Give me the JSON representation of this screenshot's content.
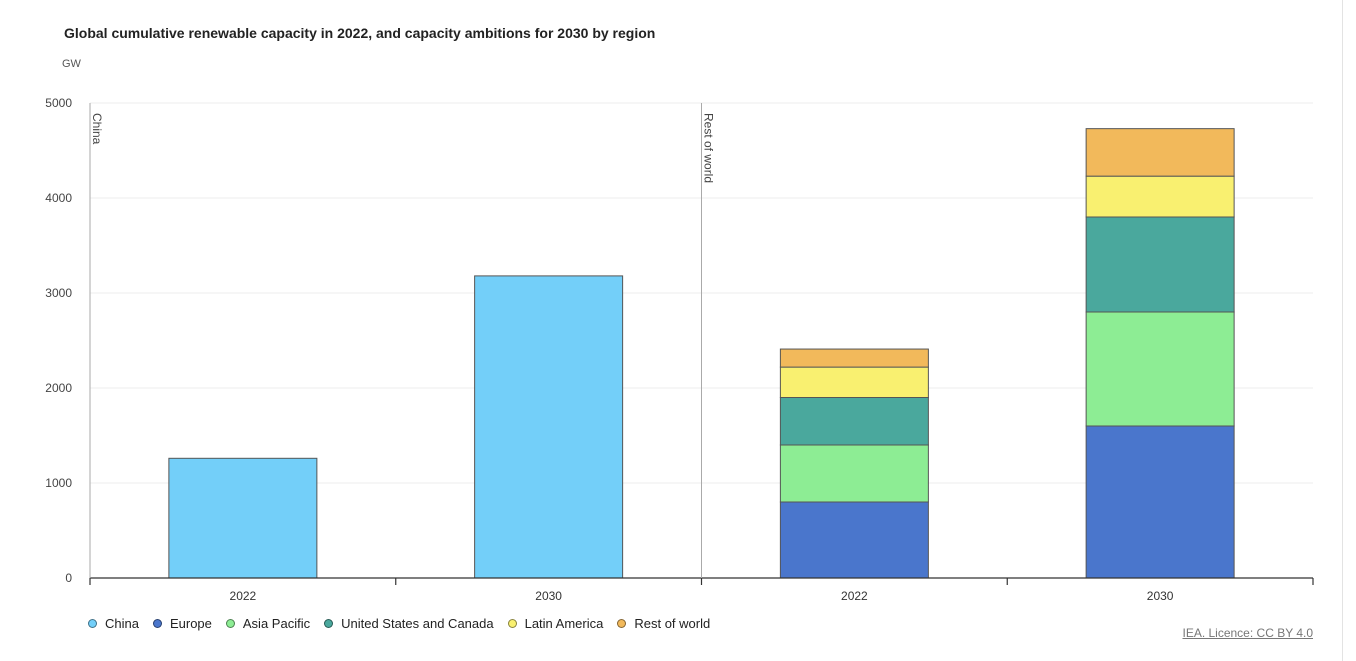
{
  "header": {
    "title": "Global cumulative renewable capacity in 2022, and capacity ambitions for 2030 by region",
    "unit": "GW"
  },
  "chart_data": {
    "type": "bar",
    "stacked": true,
    "title": "Global cumulative renewable capacity in 2022, and capacity ambitions for 2030 by region",
    "ylabel": "GW",
    "ylim": [
      0,
      5000
    ],
    "yticks": [
      0,
      1000,
      2000,
      3000,
      4000,
      5000
    ],
    "grid": true,
    "legend_position": "bottom-left",
    "panels": [
      {
        "label": "China",
        "categories": [
          "2022",
          "2030"
        ]
      },
      {
        "label": "Rest of world",
        "categories": [
          "2022",
          "2030"
        ]
      }
    ],
    "series": [
      {
        "name": "China",
        "color": "#73cff9",
        "values": [
          1260,
          3180,
          0,
          0
        ]
      },
      {
        "name": "Europe",
        "color": "#4a76cc",
        "values": [
          0,
          0,
          800,
          1600
        ]
      },
      {
        "name": "Asia Pacific",
        "color": "#8ded94",
        "values": [
          0,
          0,
          600,
          1200
        ]
      },
      {
        "name": "United States and Canada",
        "color": "#4aa89d",
        "values": [
          0,
          0,
          500,
          1000
        ]
      },
      {
        "name": "Latin America",
        "color": "#f9f070",
        "values": [
          0,
          0,
          320,
          430
        ]
      },
      {
        "name": "Rest of world",
        "color": "#f2b95b",
        "values": [
          0,
          0,
          190,
          500
        ]
      }
    ],
    "bar_labels": [
      "2022",
      "2030",
      "2022",
      "2030"
    ]
  },
  "credit": "IEA. Licence: CC BY 4.0"
}
